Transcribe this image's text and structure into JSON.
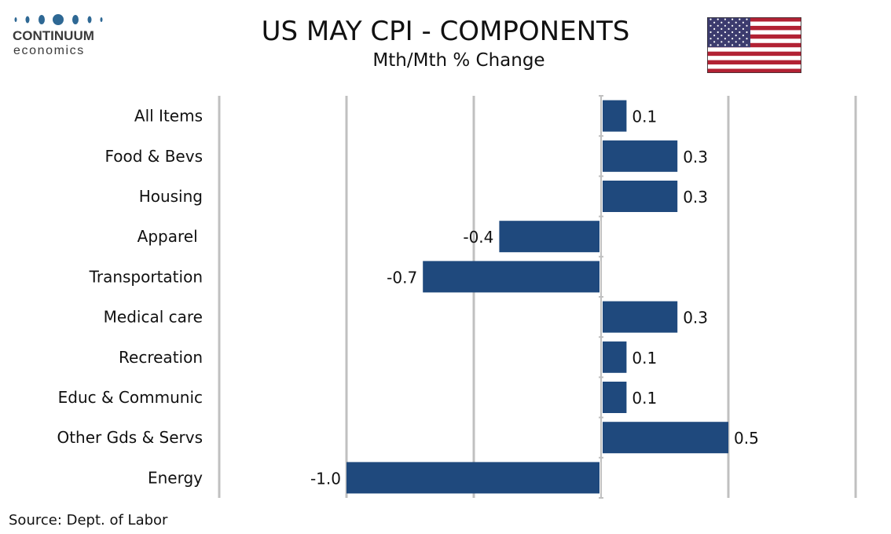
{
  "header": {
    "logo_name": "CONTINUUM",
    "logo_sub": "economics",
    "flag_icon": "us-flag-icon",
    "brand_color": "#2e6894"
  },
  "chart_data": {
    "type": "bar",
    "orientation": "horizontal",
    "title": "US MAY CPI - COMPONENTS",
    "subtitle": "Mth/Mth % Change",
    "categories": [
      "All Items",
      "Food & Bevs",
      "Housing",
      "Apparel ",
      "Transportation",
      "Medical care",
      "Recreation",
      "Educ & Communic",
      "Other Gds & Servs",
      "Energy"
    ],
    "values": [
      0.1,
      0.3,
      0.3,
      -0.4,
      -0.7,
      0.3,
      0.1,
      0.1,
      0.5,
      -1.0
    ],
    "data_labels": [
      "0.1",
      "0.3",
      "0.3",
      "-0.4",
      "-0.7",
      "0.3",
      "0.1",
      "0.1",
      "0.5",
      "-1.0"
    ],
    "xlim": [
      -1.5,
      1.0
    ],
    "gridline_step": 0.5,
    "grid": true,
    "bar_color": "#1f497d",
    "source": "Source: Dept. of Labor"
  }
}
